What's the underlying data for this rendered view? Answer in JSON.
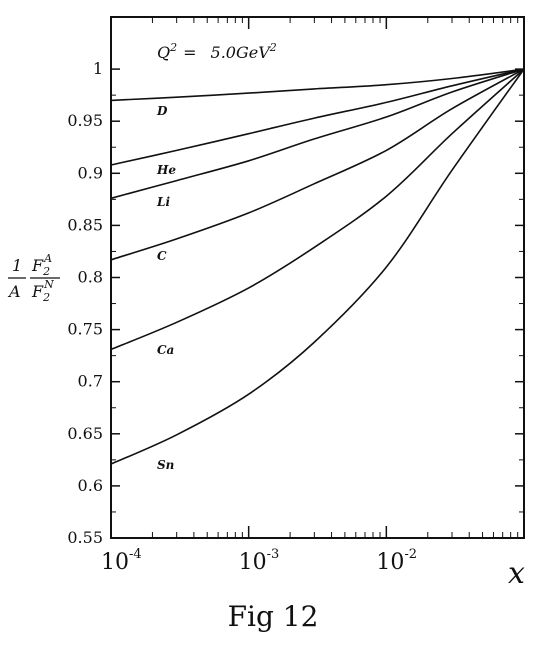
{
  "chart_data": {
    "type": "line",
    "xscale": "log",
    "xlim": [
      0.0001,
      0.1
    ],
    "ylim": [
      0.55,
      1.05
    ],
    "yticks": [
      0.55,
      0.6,
      0.65,
      0.7,
      0.75,
      0.8,
      0.85,
      0.9,
      0.95,
      1
    ],
    "ytick_labels": [
      "0.55",
      "0.6",
      "0.65",
      "0.7",
      "0.75",
      "0.8",
      "0.85",
      "0.9",
      "0.95",
      "1"
    ],
    "xtick_labels": [
      {
        "value": 0.0001,
        "base": "10",
        "exp": "-4"
      },
      {
        "value": 0.001,
        "base": "10",
        "exp": "-3"
      },
      {
        "value": 0.01,
        "base": "10",
        "exp": "-2"
      }
    ],
    "xlabel": "x",
    "ylabel": {
      "frac1_num": "1",
      "frac1_den": "A",
      "num_base": "F",
      "num_sub": "2",
      "num_sup": "A",
      "den_base": "F",
      "den_sub": "2",
      "den_sup": "N"
    },
    "annotation": {
      "lhs": "Q",
      "lhs_sup": "2",
      "eq": "=",
      "value": "5.0GeV",
      "value_sup": "2"
    },
    "series": [
      {
        "name": "D",
        "x": [
          0.0001,
          0.0003,
          0.001,
          0.003,
          0.01,
          0.03,
          0.1
        ],
        "y": [
          0.97,
          0.973,
          0.977,
          0.981,
          0.985,
          0.991,
          1.0
        ]
      },
      {
        "name": "He",
        "x": [
          0.0001,
          0.0003,
          0.001,
          0.003,
          0.01,
          0.03,
          0.1
        ],
        "y": [
          0.908,
          0.922,
          0.938,
          0.953,
          0.968,
          0.984,
          1.0
        ]
      },
      {
        "name": "Li",
        "x": [
          0.0001,
          0.0003,
          0.001,
          0.003,
          0.01,
          0.03,
          0.1
        ],
        "y": [
          0.876,
          0.893,
          0.912,
          0.933,
          0.954,
          0.978,
          1.0
        ]
      },
      {
        "name": "C",
        "x": [
          0.0001,
          0.0003,
          0.001,
          0.003,
          0.01,
          0.03,
          0.1
        ],
        "y": [
          0.817,
          0.837,
          0.862,
          0.89,
          0.922,
          0.962,
          1.0
        ]
      },
      {
        "name": "Ca",
        "x": [
          0.0001,
          0.0003,
          0.001,
          0.003,
          0.01,
          0.03,
          0.1
        ],
        "y": [
          0.731,
          0.757,
          0.79,
          0.829,
          0.878,
          0.938,
          1.0
        ]
      },
      {
        "name": "Sn",
        "x": [
          0.0001,
          0.0003,
          0.001,
          0.003,
          0.01,
          0.03,
          0.1
        ],
        "y": [
          0.621,
          0.649,
          0.688,
          0.738,
          0.81,
          0.903,
          1.0
        ]
      }
    ],
    "grid": false,
    "legend": "none"
  },
  "caption": "Fig 12"
}
